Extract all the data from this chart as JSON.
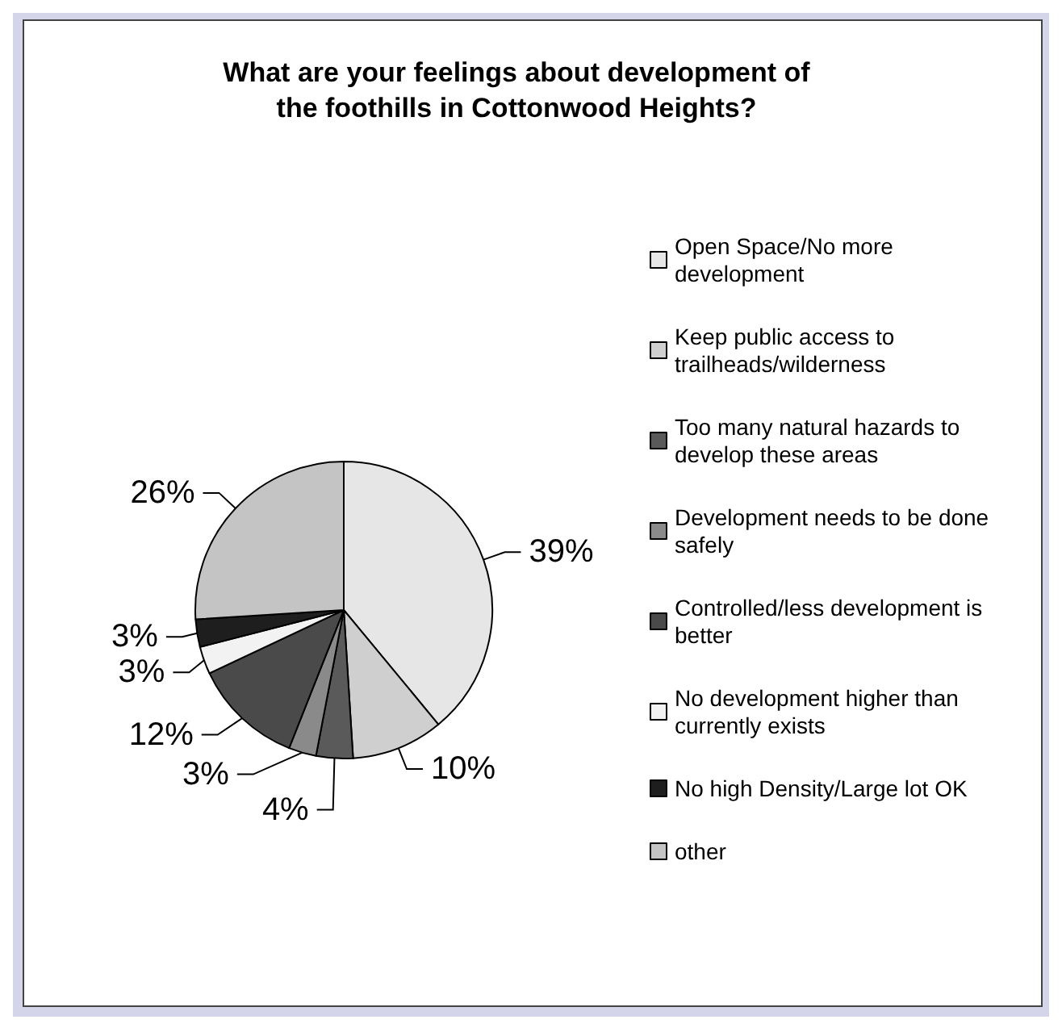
{
  "chart_data": {
    "type": "pie",
    "title": "What are your feelings about development of\nthe foothills in Cottonwood Heights?",
    "categories": [
      "Open Space/No more development",
      "Keep public access to trailheads/wilderness",
      "Too many natural hazards to develop these areas",
      "Development needs to be done safely",
      "Controlled/less development is better",
      "No development higher than currently exists",
      "No high Density/Large lot OK",
      "other"
    ],
    "values": [
      39,
      10,
      4,
      3,
      12,
      3,
      3,
      26
    ],
    "value_labels": [
      "39%",
      "10%",
      "4%",
      "3%",
      "12%",
      "3%",
      "3%",
      "26%"
    ],
    "colors": [
      "#e6e6e6",
      "#cfcfcf",
      "#5a5a5a",
      "#8a8a8a",
      "#4a4a4a",
      "#f2f2f2",
      "#1e1e1e",
      "#c4c4c4"
    ],
    "legend": "right"
  }
}
